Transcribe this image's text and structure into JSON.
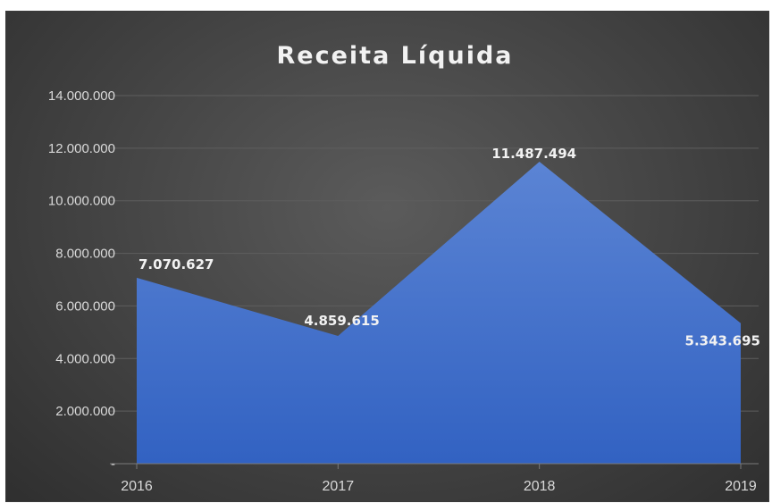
{
  "chart_data": {
    "type": "area",
    "title": "Receita Líquida",
    "categories": [
      "2016",
      "2017",
      "2018",
      "2019"
    ],
    "series": [
      {
        "values": [
          7070627,
          4859615,
          11487494,
          5343695
        ]
      }
    ],
    "data_labels": [
      "7.070.627",
      "4.859.615",
      "11.487.494",
      "5.343.695"
    ],
    "y_tick_labels": [
      "-",
      "2.000.000",
      "4.000.000",
      "6.000.000",
      "8.000.000",
      "10.000.000",
      "12.000.000",
      "14.000.000"
    ],
    "y_tick_values": [
      0,
      2000000,
      4000000,
      6000000,
      8000000,
      10000000,
      12000000,
      14000000
    ],
    "ylim": [
      0,
      14000000
    ],
    "xlabel": "",
    "ylabel": "",
    "grid": true,
    "legend": "none",
    "colors": {
      "area_top": "#5b84d4",
      "area_bottom": "#3262c2",
      "background": "#474747",
      "gridline": "#5e5e5e",
      "text": "#d9d9d9"
    }
  }
}
